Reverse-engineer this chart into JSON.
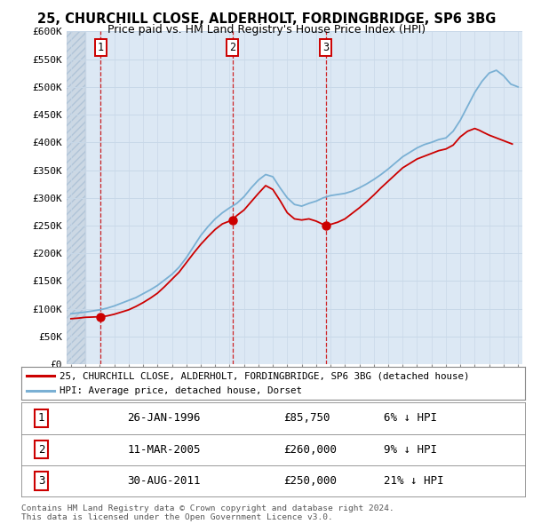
{
  "title_line1": "25, CHURCHILL CLOSE, ALDERHOLT, FORDINGBRIDGE, SP6 3BG",
  "title_line2": "Price paid vs. HM Land Registry's House Price Index (HPI)",
  "ylabel_ticks": [
    "£0",
    "£50K",
    "£100K",
    "£150K",
    "£200K",
    "£250K",
    "£300K",
    "£350K",
    "£400K",
    "£450K",
    "£500K",
    "£550K",
    "£600K"
  ],
  "ytick_values": [
    0,
    50000,
    100000,
    150000,
    200000,
    250000,
    300000,
    350000,
    400000,
    450000,
    500000,
    550000,
    600000
  ],
  "xmin": 1993.7,
  "xmax": 2025.3,
  "ymin": 0,
  "ymax": 600000,
  "sale_dates": [
    1996.07,
    2005.19,
    2011.66
  ],
  "sale_prices": [
    85750,
    260000,
    250000
  ],
  "sale_labels": [
    "1",
    "2",
    "3"
  ],
  "legend_line1": "25, CHURCHILL CLOSE, ALDERHOLT, FORDINGBRIDGE, SP6 3BG (detached house)",
  "legend_line2": "HPI: Average price, detached house, Dorset",
  "table_rows": [
    [
      "1",
      "26-JAN-1996",
      "£85,750",
      "6% ↓ HPI"
    ],
    [
      "2",
      "11-MAR-2005",
      "£260,000",
      "9% ↓ HPI"
    ],
    [
      "3",
      "30-AUG-2011",
      "£250,000",
      "21% ↓ HPI"
    ]
  ],
  "footnote": "Contains HM Land Registry data © Crown copyright and database right 2024.\nThis data is licensed under the Open Government Licence v3.0.",
  "red_color": "#cc0000",
  "blue_color": "#7ab0d4",
  "grid_color": "#c8d8e8",
  "background_plot": "#dce8f4",
  "background_hatch": "#ccd8e4"
}
